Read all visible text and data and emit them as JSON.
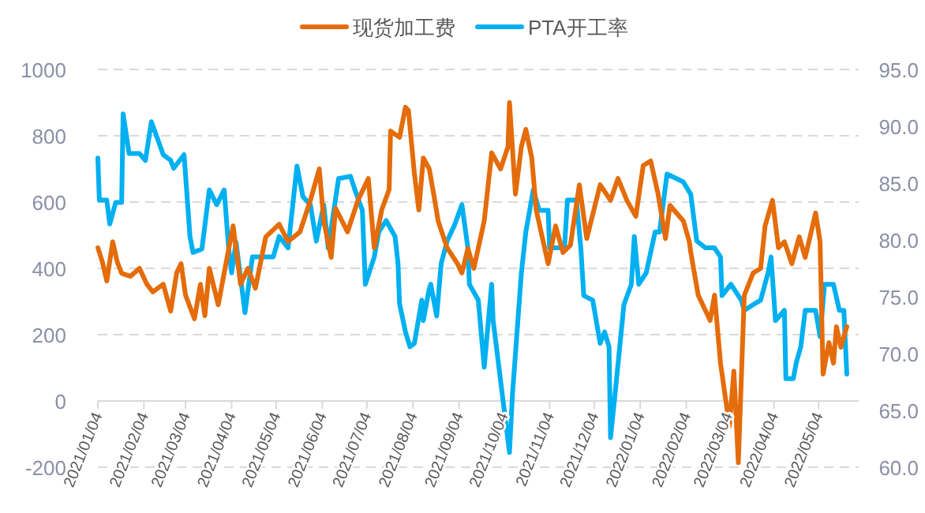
{
  "chart_data": {
    "type": "line",
    "legend": "top",
    "grid": "y",
    "line_style": "solid",
    "marker": "none",
    "xlim": [
      "2021-01-04",
      "2022-05-31"
    ],
    "xticks": [
      {
        "value": "2021-01-04",
        "label": "2021/01/04"
      },
      {
        "value": "2021-02-04",
        "label": "2021/02/04"
      },
      {
        "value": "2021-03-04",
        "label": "2021/03/04"
      },
      {
        "value": "2021-04-04",
        "label": "2021/04/04"
      },
      {
        "value": "2021-05-04",
        "label": "2021/05/04"
      },
      {
        "value": "2021-06-04",
        "label": "2021/06/04"
      },
      {
        "value": "2021-07-04",
        "label": "2021/07/04"
      },
      {
        "value": "2021-08-04",
        "label": "2021/08/04"
      },
      {
        "value": "2021-09-04",
        "label": "2021/09/04"
      },
      {
        "value": "2021-10-04",
        "label": "2021/10/04"
      },
      {
        "value": "2021-11-04",
        "label": "2021/11/04"
      },
      {
        "value": "2021-12-04",
        "label": "2021/12/04"
      },
      {
        "value": "2022-01-04",
        "label": "2022/01/04"
      },
      {
        "value": "2022-02-04",
        "label": "2022/02/04"
      },
      {
        "value": "2022-03-04",
        "label": "2022/03/04"
      },
      {
        "value": "2022-04-04",
        "label": "2022/04/04"
      },
      {
        "value": "2022-05-04",
        "label": "2022/05/04"
      }
    ],
    "ylim": [
      -200,
      1000
    ],
    "yticks": [
      -200,
      0,
      200,
      400,
      600,
      800,
      1000
    ],
    "y2lim": [
      60,
      95
    ],
    "y2ticks": [
      {
        "value": 60,
        "label": "60.0"
      },
      {
        "value": 65,
        "label": "65.0"
      },
      {
        "value": 70,
        "label": "70.0"
      },
      {
        "value": 75,
        "label": "75.0"
      },
      {
        "value": 80,
        "label": "80.0"
      },
      {
        "value": 85,
        "label": "85.0"
      },
      {
        "value": 90,
        "label": "90.0"
      },
      {
        "value": 95,
        "label": "95.0"
      }
    ],
    "series": [
      {
        "name": "现货加工费",
        "color": "#e46c0a",
        "x": [
          "2021-01-04",
          "2021-01-07",
          "2021-01-10",
          "2021-01-14",
          "2021-01-17",
          "2021-01-20",
          "2021-01-26",
          "2021-02-01",
          "2021-02-06",
          "2021-02-10",
          "2021-02-17",
          "2021-02-22",
          "2021-02-26",
          "2021-03-01",
          "2021-03-04",
          "2021-03-10",
          "2021-03-14",
          "2021-03-17",
          "2021-03-20",
          "2021-03-26",
          "2021-03-30",
          "2021-04-05",
          "2021-04-10",
          "2021-04-15",
          "2021-04-20",
          "2021-04-27",
          "2021-05-06",
          "2021-05-12",
          "2021-05-20",
          "2021-05-27",
          "2021-06-02",
          "2021-06-05",
          "2021-06-10",
          "2021-06-13",
          "2021-06-21",
          "2021-06-28",
          "2021-07-05",
          "2021-07-09",
          "2021-07-14",
          "2021-07-19",
          "2021-07-20",
          "2021-07-26",
          "2021-07-30",
          "2021-08-01",
          "2021-08-05",
          "2021-08-08",
          "2021-08-11",
          "2021-08-15",
          "2021-08-18",
          "2021-08-21",
          "2021-08-27",
          "2021-09-03",
          "2021-09-06",
          "2021-09-10",
          "2021-09-14",
          "2021-09-21",
          "2021-09-26",
          "2021-10-02",
          "2021-10-07",
          "2021-10-08",
          "2021-10-12",
          "2021-10-16",
          "2021-10-19",
          "2021-10-23",
          "2021-10-26",
          "2021-11-03",
          "2021-11-08",
          "2021-11-13",
          "2021-11-18",
          "2021-11-24",
          "2021-11-29",
          "2021-12-08",
          "2021-12-15",
          "2021-12-20",
          "2021-12-26",
          "2022-01-01",
          "2022-01-06",
          "2022-01-11",
          "2022-01-16",
          "2022-01-21",
          "2022-01-24",
          "2022-02-02",
          "2022-02-06",
          "2022-02-07",
          "2022-02-12",
          "2022-02-20",
          "2022-02-23",
          "2022-02-27",
          "2022-03-05",
          "2022-03-08",
          "2022-03-11",
          "2022-03-15",
          "2022-03-21",
          "2022-03-26",
          "2022-03-29",
          "2022-04-03",
          "2022-04-07",
          "2022-04-11",
          "2022-04-16",
          "2022-04-21",
          "2022-04-25",
          "2022-05-02",
          "2022-05-05",
          "2022-05-07",
          "2022-05-11",
          "2022-05-14",
          "2022-05-16",
          "2022-05-19",
          "2022-05-23"
        ],
        "values": [
          462,
          420,
          362,
          480,
          420,
          385,
          376,
          400,
          352,
          329,
          352,
          271,
          386,
          414,
          319,
          248,
          352,
          257,
          400,
          290,
          386,
          528,
          352,
          400,
          340,
          495,
          533,
          481,
          510,
          605,
          700,
          543,
          433,
          581,
          510,
          605,
          671,
          462,
          576,
          638,
          814,
          795,
          886,
          876,
          686,
          576,
          733,
          700,
          624,
          543,
          462,
          414,
          386,
          460,
          400,
          543,
          748,
          700,
          767,
          900,
          624,
          767,
          819,
          733,
          576,
          414,
          528,
          448,
          470,
          652,
          490,
          652,
          605,
          671,
          605,
          557,
          710,
          724,
          624,
          490,
          590,
          543,
          481,
          448,
          319,
          243,
          319,
          114,
          -76,
          90,
          -186,
          319,
          386,
          400,
          528,
          605,
          462,
          480,
          414,
          495,
          433,
          567,
          481,
          81,
          176,
          114,
          224,
          162,
          224
        ]
      },
      {
        "name": "PTA开工率",
        "color": "#00b0f0",
        "axis": "y2",
        "x": [
          "2021-01-04",
          "2021-01-05",
          "2021-01-10",
          "2021-01-12",
          "2021-01-16",
          "2021-01-20",
          "2021-01-21",
          "2021-01-25",
          "2021-02-01",
          "2021-02-05",
          "2021-02-09",
          "2021-02-17",
          "2021-02-22",
          "2021-02-24",
          "2021-03-03",
          "2021-03-07",
          "2021-03-09",
          "2021-03-15",
          "2021-03-20",
          "2021-03-25",
          "2021-03-30",
          "2021-04-02",
          "2021-04-04",
          "2021-04-07",
          "2021-04-13",
          "2021-04-18",
          "2021-05-02",
          "2021-05-06",
          "2021-05-12",
          "2021-05-18",
          "2021-05-22",
          "2021-05-27",
          "2021-05-31",
          "2021-06-05",
          "2021-06-08",
          "2021-06-15",
          "2021-06-23",
          "2021-06-26",
          "2021-07-01",
          "2021-07-03",
          "2021-07-09",
          "2021-07-12",
          "2021-07-17",
          "2021-07-23",
          "2021-07-25",
          "2021-07-26",
          "2021-07-30",
          "2021-08-02",
          "2021-08-05",
          "2021-08-10",
          "2021-08-11",
          "2021-08-15",
          "2021-08-16",
          "2021-08-20",
          "2021-08-23",
          "2021-08-27",
          "2021-09-01",
          "2021-09-06",
          "2021-09-10",
          "2021-09-11",
          "2021-09-17",
          "2021-09-21",
          "2021-09-26",
          "2021-09-27",
          "2021-10-08",
          "2021-10-10",
          "2021-10-16",
          "2021-10-19",
          "2021-10-24",
          "2021-10-28",
          "2021-11-03",
          "2021-11-04",
          "2021-11-14",
          "2021-11-16",
          "2021-11-22",
          "2021-11-25",
          "2021-11-27",
          "2021-12-03",
          "2021-12-08",
          "2021-12-11",
          "2021-12-14",
          "2021-12-15",
          "2021-12-18",
          "2021-12-24",
          "2021-12-29",
          "2021-12-31",
          "2022-01-03",
          "2022-01-08",
          "2022-01-14",
          "2022-01-17",
          "2022-01-22",
          "2022-02-02",
          "2022-02-07",
          "2022-02-11",
          "2022-02-17",
          "2022-02-23",
          "2022-02-27",
          "2022-02-28",
          "2022-03-06",
          "2022-03-13",
          "2022-03-15",
          "2022-03-21",
          "2022-03-26",
          "2022-03-31",
          "2022-04-02",
          "2022-04-05",
          "2022-04-11",
          "2022-04-12",
          "2022-04-17",
          "2022-04-19",
          "2022-04-22",
          "2022-04-25",
          "2022-05-02",
          "2022-05-05",
          "2022-05-08",
          "2022-05-14",
          "2022-05-18",
          "2022-05-21",
          "2022-05-23"
        ],
        "values": [
          87.2,
          83.5,
          83.5,
          81.4,
          83.3,
          83.3,
          91.1,
          87.6,
          87.6,
          87.0,
          90.4,
          87.5,
          87.0,
          86.3,
          87.5,
          80.3,
          78.9,
          79.2,
          84.4,
          83.1,
          84.4,
          79.3,
          77.1,
          79.8,
          73.6,
          78.5,
          78.5,
          80.3,
          79.3,
          86.5,
          83.8,
          83.1,
          79.9,
          83.1,
          79.3,
          85.4,
          85.6,
          84.4,
          82.6,
          76.1,
          78.5,
          80.7,
          81.7,
          80.3,
          77.9,
          74.4,
          71.9,
          70.6,
          70.9,
          74.7,
          72.9,
          75.7,
          76.1,
          73.3,
          77.9,
          79.9,
          81.3,
          83.1,
          79.3,
          76.1,
          74.7,
          68.8,
          76.1,
          72.9,
          61.3,
          66.4,
          77.1,
          80.7,
          84.4,
          82.6,
          82.6,
          79.3,
          79.3,
          83.5,
          83.5,
          79.3,
          75.1,
          74.7,
          70.9,
          71.9,
          70.6,
          62.6,
          66.4,
          74.3,
          76.1,
          80.3,
          76.1,
          77.1,
          80.7,
          80.7,
          85.8,
          85.1,
          84.0,
          79.9,
          79.3,
          79.3,
          78.5,
          75.1,
          76.1,
          74.7,
          73.8,
          74.3,
          74.7,
          77.1,
          78.5,
          72.9,
          73.8,
          67.8,
          67.8,
          69.2,
          70.6,
          73.8,
          73.8,
          71.5,
          76.1,
          76.1,
          73.8,
          73.8,
          68.2
        ]
      }
    ]
  }
}
